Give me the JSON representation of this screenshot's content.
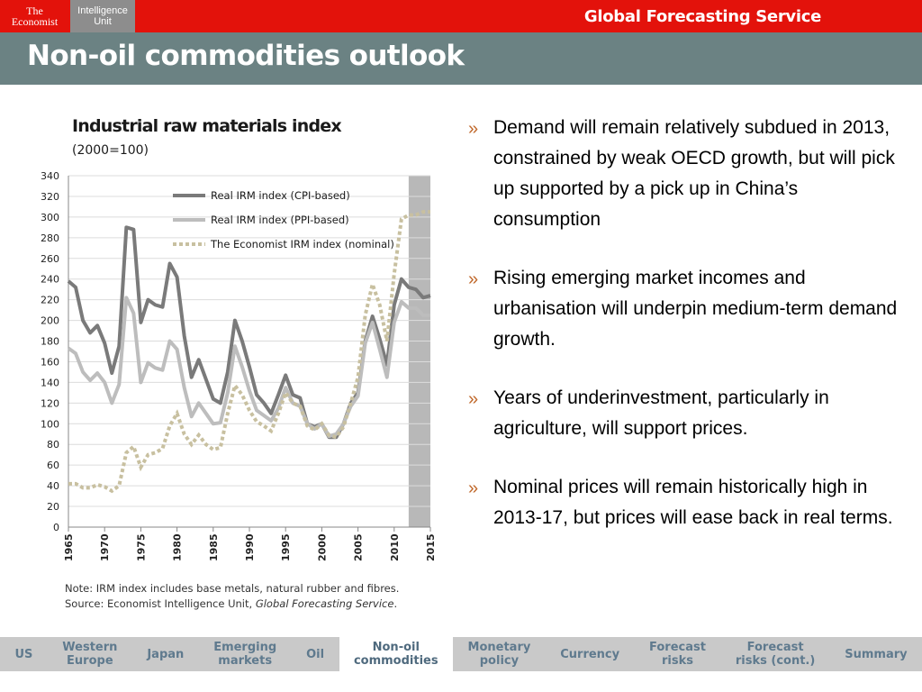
{
  "header": {
    "logo_economist": [
      "The",
      "Economist"
    ],
    "logo_eiu": [
      "Intelligence",
      "Unit"
    ],
    "service": "Global Forecasting Service",
    "title": "Non-oil commodities outlook"
  },
  "chart_note": {
    "note": "Note: IRM index includes base metals, natural rubber and fibres.",
    "source_prefix": "Source: Economist Intelligence Unit, ",
    "source_italic": "Global Forecasting Service",
    "source_suffix": "."
  },
  "bullets": [
    "Demand will remain relatively subdued in 2013, constrained by weak OECD growth, but will pick up supported by a pick up in China’s consumption",
    "Rising emerging market incomes and urbanisation will underpin medium-term demand growth.",
    "Years of underinvestment, particularly in agriculture, will support prices.",
    "Nominal prices will remain historically high in 2013-17, but prices will ease back in real terms."
  ],
  "bullet_marker": "»",
  "nav": [
    {
      "label": [
        "US"
      ],
      "active": false
    },
    {
      "label": [
        "Western",
        "Europe"
      ],
      "active": false
    },
    {
      "label": [
        "Japan"
      ],
      "active": false
    },
    {
      "label": [
        "Emerging",
        "markets"
      ],
      "active": false
    },
    {
      "label": [
        "Oil"
      ],
      "active": false
    },
    {
      "label": [
        "Non-oil",
        "commodities"
      ],
      "active": true
    },
    {
      "label": [
        "Monetary",
        "policy"
      ],
      "active": false
    },
    {
      "label": [
        "Currency"
      ],
      "active": false
    },
    {
      "label": [
        "Forecast",
        "risks"
      ],
      "active": false
    },
    {
      "label": [
        "Forecast",
        "risks (cont.)"
      ],
      "active": false
    },
    {
      "label": [
        "Summary"
      ],
      "active": false
    }
  ],
  "colors": {
    "brand_red": "#e3120b",
    "title_bar": "#6b8283",
    "cpi": "#7a7a7a",
    "ppi": "#bdbdbd",
    "nominal": "#c8c0a0",
    "forecast_band": "#b8b8b8",
    "bullet": "#c0692c"
  },
  "chart_data": {
    "type": "line",
    "title": "Industrial raw materials index",
    "subtitle": "(2000=100)",
    "ylim": [
      0,
      340
    ],
    "yticks": [
      0,
      20,
      40,
      60,
      80,
      100,
      120,
      140,
      160,
      180,
      200,
      220,
      240,
      260,
      280,
      300,
      320,
      340
    ],
    "xlim": [
      1965,
      2015
    ],
    "xticks": [
      1965,
      1970,
      1975,
      1980,
      1985,
      1990,
      1995,
      2000,
      2005,
      2010,
      2015
    ],
    "forecast_start": 2012,
    "legend_position": "top",
    "x": [
      1965,
      1966,
      1967,
      1968,
      1969,
      1970,
      1971,
      1972,
      1973,
      1974,
      1975,
      1976,
      1977,
      1978,
      1979,
      1980,
      1981,
      1982,
      1983,
      1984,
      1985,
      1986,
      1987,
      1988,
      1989,
      1990,
      1991,
      1992,
      1993,
      1994,
      1995,
      1996,
      1997,
      1998,
      1999,
      2000,
      2001,
      2002,
      2003,
      2004,
      2005,
      2006,
      2007,
      2008,
      2009,
      2010,
      2011,
      2012,
      2013,
      2014,
      2015
    ],
    "series": [
      {
        "name": "Real IRM index (CPI-based)",
        "style": "solid-dark",
        "values": [
          238,
          232,
          200,
          188,
          195,
          178,
          149,
          175,
          290,
          288,
          198,
          220,
          215,
          213,
          255,
          242,
          185,
          145,
          162,
          143,
          124,
          120,
          150,
          200,
          180,
          155,
          128,
          120,
          110,
          128,
          147,
          128,
          125,
          100,
          97,
          100,
          87,
          87,
          100,
          120,
          130,
          180,
          204,
          182,
          157,
          215,
          240,
          232,
          230,
          222,
          224
        ]
      },
      {
        "name": "Real IRM index (PPI-based)",
        "style": "solid-light",
        "values": [
          173,
          168,
          150,
          142,
          149,
          140,
          120,
          138,
          222,
          207,
          140,
          159,
          154,
          152,
          180,
          172,
          135,
          107,
          120,
          110,
          100,
          101,
          130,
          175,
          155,
          132,
          113,
          108,
          103,
          115,
          135,
          120,
          117,
          100,
          95,
          100,
          88,
          90,
          100,
          117,
          127,
          178,
          198,
          172,
          145,
          198,
          218,
          212,
          212,
          205,
          205
        ]
      },
      {
        "name": "The Economist IRM index (nominal)",
        "style": "dotted",
        "values": [
          42,
          42,
          38,
          38,
          41,
          39,
          35,
          40,
          72,
          78,
          58,
          70,
          72,
          76,
          98,
          110,
          90,
          80,
          89,
          80,
          75,
          77,
          110,
          137,
          128,
          113,
          102,
          98,
          93,
          110,
          130,
          120,
          117,
          98,
          94,
          100,
          89,
          87,
          97,
          120,
          145,
          205,
          235,
          215,
          180,
          245,
          298,
          302,
          302,
          305,
          305
        ]
      }
    ]
  }
}
